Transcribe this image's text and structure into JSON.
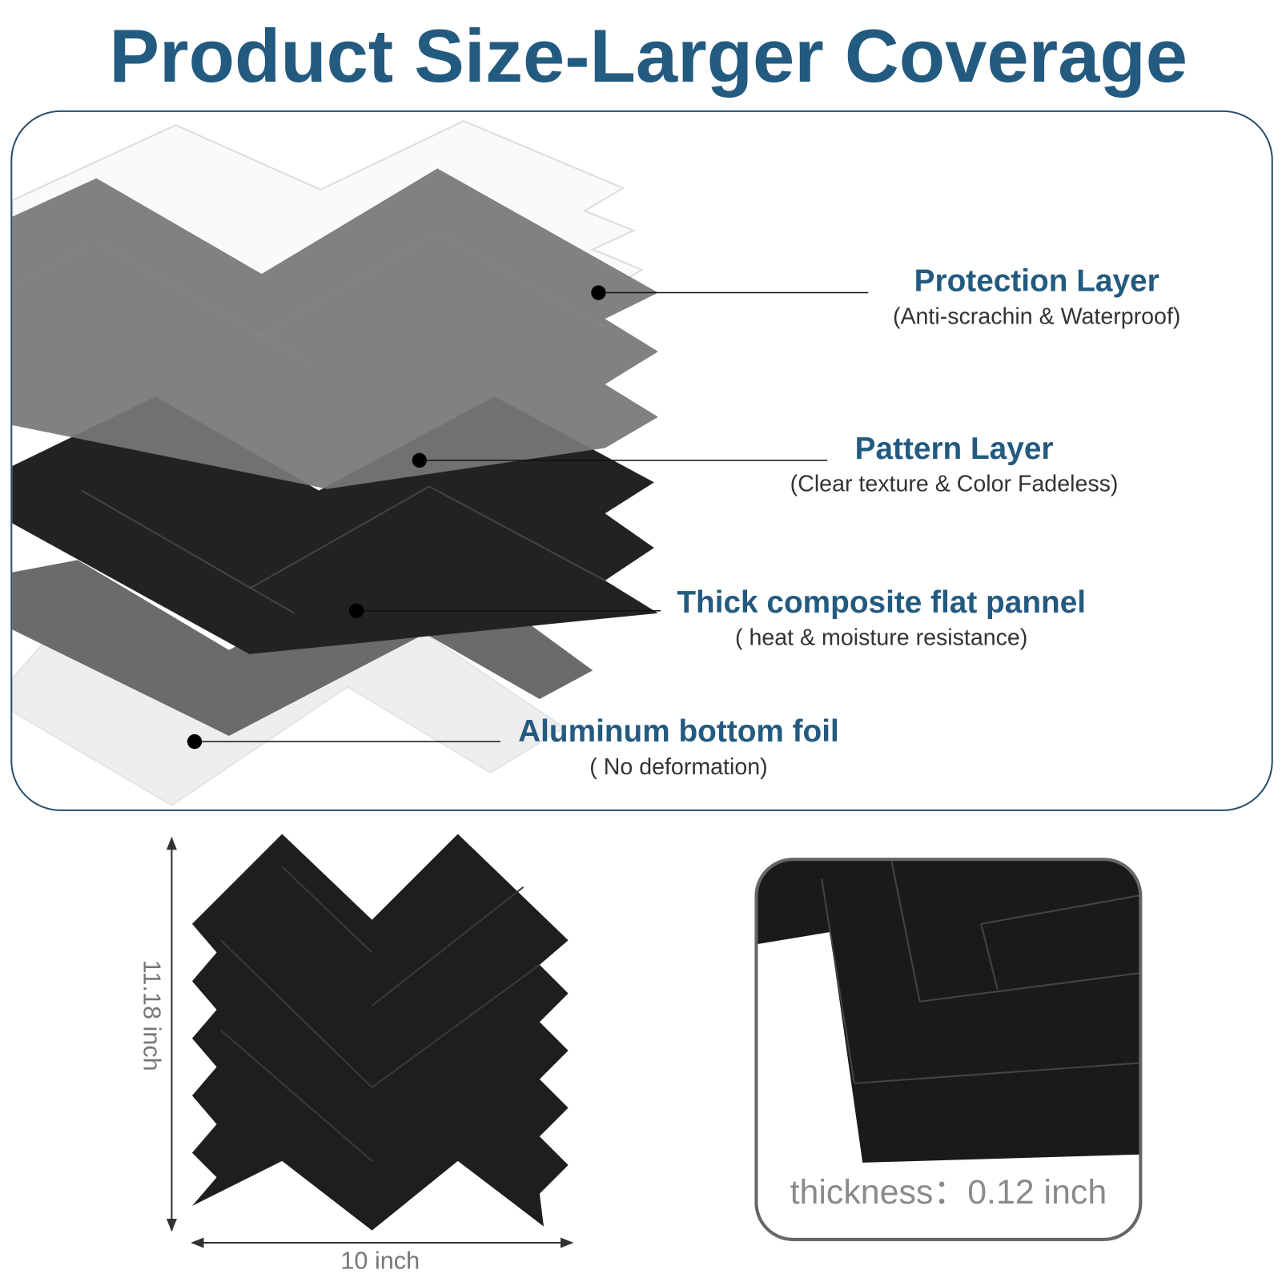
{
  "title": "Product Size-Larger Coverage",
  "layers": [
    {
      "name": "Protection Layer",
      "note": "(Anti-scrachin & Waterproof)"
    },
    {
      "name": "Pattern Layer",
      "note": "(Clear texture & Color Fadeless)"
    },
    {
      "name": "Thick composite flat pannel",
      "note": "( heat & moisture resistance)"
    },
    {
      "name": "Aluminum bottom foil",
      "note": "( No deformation)"
    }
  ],
  "dimensions": {
    "height": "11.18 inch",
    "width": "10 inch"
  },
  "thickness": "thickness：0.12 inch"
}
